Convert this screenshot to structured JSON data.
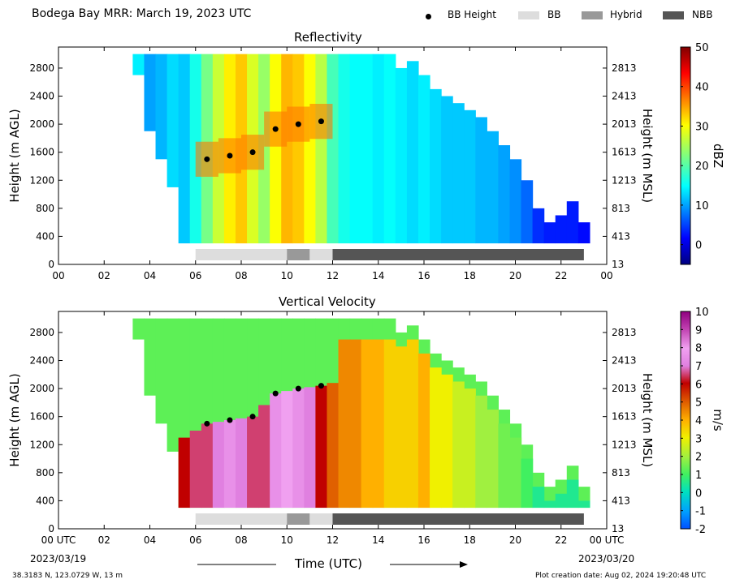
{
  "header": {
    "title": "Bodega Bay MRR:  March 19, 2023 UTC",
    "legend": [
      {
        "label": "BB Height",
        "kind": "dot",
        "color": "#000000"
      },
      {
        "label": "BB",
        "kind": "rect",
        "color": "#dddddd"
      },
      {
        "label": "Hybrid",
        "kind": "rect",
        "color": "#999999"
      },
      {
        "label": "NBB",
        "kind": "rect",
        "color": "#555555"
      }
    ]
  },
  "footer": {
    "location": "38.3183 N, 123.0729 W, 13 m",
    "created": "Plot creation date: Aug 02, 2024 19:20:48 UTC",
    "start_label": "00 UTC",
    "start_date": "2023/03/19",
    "end_label": "00 UTC",
    "end_date": "2023/03/20",
    "xlabel": "Time (UTC)"
  },
  "chart_data": [
    {
      "type": "heatmap",
      "title": "Reflectivity",
      "xlabel": "",
      "ylabel": "Height (m AGL)",
      "ylabel_right": "Height (m MSL)",
      "xlim": [
        0,
        24
      ],
      "ylim": [
        0,
        3100
      ],
      "x_ticks": [
        "00",
        "02",
        "04",
        "06",
        "08",
        "10",
        "12",
        "14",
        "16",
        "18",
        "20",
        "22",
        "00"
      ],
      "y_ticks": [
        0,
        400,
        800,
        1200,
        1600,
        2000,
        2400,
        2800
      ],
      "y_ticks_right": [
        13,
        413,
        813,
        1213,
        1613,
        2013,
        2413,
        2813
      ],
      "colorbar": {
        "label": "dBZ",
        "min": -5,
        "max": 50,
        "ticks": [
          0,
          10,
          20,
          30,
          40,
          50
        ],
        "colormap": "jet"
      },
      "bb_height": [
        {
          "x": 6.5,
          "y": 1500
        },
        {
          "x": 7.5,
          "y": 1550
        },
        {
          "x": 8.5,
          "y": 1600
        },
        {
          "x": 9.5,
          "y": 1930
        },
        {
          "x": 10.5,
          "y": 2000
        },
        {
          "x": 11.5,
          "y": 2040
        }
      ],
      "bb_class": [
        {
          "start": 6,
          "end": 10,
          "class": "BB"
        },
        {
          "start": 10,
          "end": 11,
          "class": "Hybrid"
        },
        {
          "start": 11,
          "end": 12,
          "class": "BB"
        },
        {
          "start": 12,
          "end": 23,
          "class": "NBB"
        }
      ],
      "echo_profile": [
        {
          "hour": 3.5,
          "top": 3000,
          "bottom": 2700,
          "value": 14
        },
        {
          "hour": 4.0,
          "top": 3000,
          "bottom": 1900,
          "value": 10
        },
        {
          "hour": 4.5,
          "top": 3000,
          "bottom": 1500,
          "value": 11
        },
        {
          "hour": 5.0,
          "top": 3000,
          "bottom": 1100,
          "value": 13
        },
        {
          "hour": 5.5,
          "top": 3000,
          "bottom": 300,
          "value": 12
        },
        {
          "hour": 6.0,
          "top": 3000,
          "bottom": 300,
          "value": 16
        },
        {
          "hour": 6.5,
          "top": 3000,
          "bottom": 300,
          "value": 22
        },
        {
          "hour": 7.0,
          "top": 3000,
          "bottom": 300,
          "value": 27
        },
        {
          "hour": 7.5,
          "top": 3000,
          "bottom": 300,
          "value": 31
        },
        {
          "hour": 8.0,
          "top": 3000,
          "bottom": 300,
          "value": 33
        },
        {
          "hour": 8.5,
          "top": 3000,
          "bottom": 300,
          "value": 28
        },
        {
          "hour": 9.0,
          "top": 3000,
          "bottom": 300,
          "value": 24
        },
        {
          "hour": 9.5,
          "top": 3000,
          "bottom": 300,
          "value": 30
        },
        {
          "hour": 10.0,
          "top": 3000,
          "bottom": 300,
          "value": 34
        },
        {
          "hour": 10.5,
          "top": 3000,
          "bottom": 300,
          "value": 33
        },
        {
          "hour": 11.0,
          "top": 3000,
          "bottom": 300,
          "value": 30
        },
        {
          "hour": 11.5,
          "top": 3000,
          "bottom": 300,
          "value": 26
        },
        {
          "hour": 12.0,
          "top": 3000,
          "bottom": 300,
          "value": 19
        },
        {
          "hour": 12.5,
          "top": 3000,
          "bottom": 300,
          "value": 16
        },
        {
          "hour": 13.0,
          "top": 3000,
          "bottom": 300,
          "value": 15
        },
        {
          "hour": 13.5,
          "top": 3000,
          "bottom": 300,
          "value": 15
        },
        {
          "hour": 14.0,
          "top": 3000,
          "bottom": 300,
          "value": 14
        },
        {
          "hour": 14.5,
          "top": 3000,
          "bottom": 300,
          "value": 15
        },
        {
          "hour": 15.0,
          "top": 2800,
          "bottom": 300,
          "value": 14
        },
        {
          "hour": 15.5,
          "top": 2900,
          "bottom": 300,
          "value": 13
        },
        {
          "hour": 16.0,
          "top": 2700,
          "bottom": 300,
          "value": 14
        },
        {
          "hour": 16.5,
          "top": 2500,
          "bottom": 300,
          "value": 13
        },
        {
          "hour": 17.0,
          "top": 2400,
          "bottom": 300,
          "value": 12
        },
        {
          "hour": 17.5,
          "top": 2300,
          "bottom": 300,
          "value": 12
        },
        {
          "hour": 18.0,
          "top": 2200,
          "bottom": 300,
          "value": 12
        },
        {
          "hour": 18.5,
          "top": 2100,
          "bottom": 300,
          "value": 11
        },
        {
          "hour": 19.0,
          "top": 1900,
          "bottom": 300,
          "value": 11
        },
        {
          "hour": 19.5,
          "top": 1700,
          "bottom": 300,
          "value": 10
        },
        {
          "hour": 20.0,
          "top": 1500,
          "bottom": 300,
          "value": 9
        },
        {
          "hour": 20.5,
          "top": 1200,
          "bottom": 300,
          "value": 7
        },
        {
          "hour": 21.0,
          "top": 800,
          "bottom": 300,
          "value": 4
        },
        {
          "hour": 21.5,
          "top": 600,
          "bottom": 300,
          "value": 3
        },
        {
          "hour": 22.0,
          "top": 700,
          "bottom": 300,
          "value": 3
        },
        {
          "hour": 22.5,
          "top": 900,
          "bottom": 300,
          "value": 3
        },
        {
          "hour": 23.0,
          "top": 600,
          "bottom": 300,
          "value": 2
        }
      ]
    },
    {
      "type": "heatmap",
      "title": "Vertical Velocity",
      "xlabel": "Time (UTC)",
      "ylabel": "Height (m AGL)",
      "ylabel_right": "Height (m MSL)",
      "xlim": [
        0,
        24
      ],
      "ylim": [
        0,
        3100
      ],
      "x_ticks": [
        "00 UTC",
        "02",
        "04",
        "06",
        "08",
        "10",
        "12",
        "14",
        "16",
        "18",
        "20",
        "22",
        "00 UTC"
      ],
      "y_ticks": [
        0,
        400,
        800,
        1200,
        1600,
        2000,
        2400,
        2800
      ],
      "y_ticks_right": [
        13,
        413,
        813,
        1213,
        1613,
        2013,
        2413,
        2813
      ],
      "colorbar": {
        "label": "m/s",
        "min": -2,
        "max": 10,
        "ticks": [
          -2,
          -1,
          0,
          1,
          2,
          3,
          4,
          5,
          6,
          7,
          8,
          9,
          10
        ]
      },
      "bb_height": [
        {
          "x": 6.5,
          "y": 1500
        },
        {
          "x": 7.5,
          "y": 1550
        },
        {
          "x": 8.5,
          "y": 1600
        },
        {
          "x": 9.5,
          "y": 1930
        },
        {
          "x": 10.5,
          "y": 2000
        },
        {
          "x": 11.5,
          "y": 2040
        }
      ],
      "bb_class": [
        {
          "start": 6,
          "end": 10,
          "class": "BB"
        },
        {
          "start": 10,
          "end": 11,
          "class": "Hybrid"
        },
        {
          "start": 11,
          "end": 12,
          "class": "BB"
        },
        {
          "start": 12,
          "end": 23,
          "class": "NBB"
        }
      ],
      "melting_level": [
        {
          "hour": 5.5,
          "y": 1300
        },
        {
          "hour": 6.5,
          "y": 1500
        },
        {
          "hour": 7.5,
          "y": 1550
        },
        {
          "hour": 8.5,
          "y": 1600
        },
        {
          "hour": 9.5,
          "y": 1930
        },
        {
          "hour": 10.5,
          "y": 2000
        },
        {
          "hour": 11.5,
          "y": 2040
        },
        {
          "hour": 12.0,
          "y": 2080
        }
      ],
      "rain_velocity": [
        {
          "hour": 5.5,
          "value": 6.0
        },
        {
          "hour": 6.0,
          "value": 6.5
        },
        {
          "hour": 6.5,
          "value": 6.5
        },
        {
          "hour": 7.0,
          "value": 7.0
        },
        {
          "hour": 7.5,
          "value": 7.5
        },
        {
          "hour": 8.0,
          "value": 7.0
        },
        {
          "hour": 8.5,
          "value": 6.5
        },
        {
          "hour": 9.0,
          "value": 6.5
        },
        {
          "hour": 9.5,
          "value": 7.5
        },
        {
          "hour": 10.0,
          "value": 8.0
        },
        {
          "hour": 10.5,
          "value": 7.5
        },
        {
          "hour": 11.0,
          "value": 7.0
        },
        {
          "hour": 11.5,
          "value": 6.0
        },
        {
          "hour": 12.0,
          "value": 5.0
        },
        {
          "hour": 12.5,
          "value": 4.5
        },
        {
          "hour": 13.0,
          "value": 4.5
        },
        {
          "hour": 13.5,
          "value": 4.0
        },
        {
          "hour": 14.0,
          "value": 4.0
        },
        {
          "hour": 14.5,
          "value": 3.5
        },
        {
          "hour": 15.0,
          "value": 3.5
        },
        {
          "hour": 15.5,
          "value": 3.5
        },
        {
          "hour": 16.0,
          "value": 4.0
        },
        {
          "hour": 16.5,
          "value": 3.0
        },
        {
          "hour": 17.0,
          "value": 3.0
        },
        {
          "hour": 17.5,
          "value": 2.5
        },
        {
          "hour": 18.0,
          "value": 2.5
        },
        {
          "hour": 18.5,
          "value": 2.0
        },
        {
          "hour": 19.0,
          "value": 2.0
        },
        {
          "hour": 19.5,
          "value": 1.5
        },
        {
          "hour": 20.0,
          "value": 1.5
        },
        {
          "hour": 20.5,
          "value": 1.0
        },
        {
          "hour": 21.0,
          "value": 0.5
        },
        {
          "hour": 21.5,
          "value": 0.5
        },
        {
          "hour": 22.0,
          "value": 0.5
        },
        {
          "hour": 22.5,
          "value": 0.5
        },
        {
          "hour": 23.0,
          "value": 0.5
        }
      ],
      "echo_top": [
        {
          "hour": 3.5,
          "top": 3000,
          "bottom": 2700
        },
        {
          "hour": 4.0,
          "top": 3000,
          "bottom": 1900
        },
        {
          "hour": 4.5,
          "top": 3000,
          "bottom": 1500
        },
        {
          "hour": 5.0,
          "top": 3000,
          "bottom": 1100
        },
        {
          "hour": 5.5,
          "top": 3000,
          "bottom": 300
        },
        {
          "hour": 15.0,
          "top": 2800,
          "bottom": 300
        },
        {
          "hour": 17.0,
          "top": 2400,
          "bottom": 300
        },
        {
          "hour": 19.0,
          "top": 1900,
          "bottom": 300
        },
        {
          "hour": 20.5,
          "top": 1200,
          "bottom": 300
        },
        {
          "hour": 21.5,
          "top": 600,
          "bottom": 300
        },
        {
          "hour": 22.5,
          "top": 900,
          "bottom": 300
        },
        {
          "hour": 23.0,
          "top": 600,
          "bottom": 300
        }
      ]
    }
  ]
}
